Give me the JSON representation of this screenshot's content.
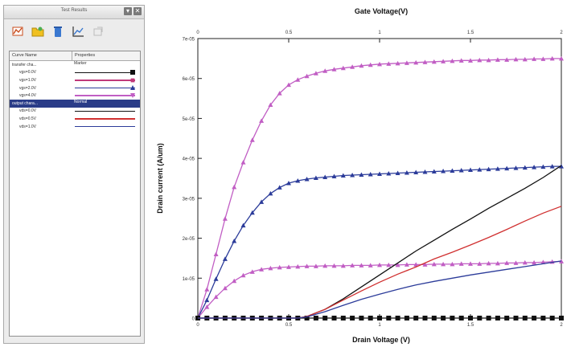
{
  "panel": {
    "title": "Test Results",
    "close_label": "✕",
    "toolbar": [
      {
        "name": "new-plot-icon"
      },
      {
        "name": "open-folder-icon"
      },
      {
        "name": "delete-icon"
      },
      {
        "name": "chart-icon"
      },
      {
        "name": "export-icon"
      }
    ],
    "columns": [
      "Curve Name",
      "Properties"
    ],
    "groups": [
      {
        "name": "transfer cha...",
        "property": "Marker",
        "selected": false,
        "children": [
          {
            "name": "vgs=0.0V",
            "color": "#111111",
            "marker": "square"
          },
          {
            "name": "vgs=1.0V",
            "color": "#c0397a",
            "marker": "square"
          },
          {
            "name": "vgs=2.0V",
            "color": "#2c3c9a",
            "marker": "triangle"
          },
          {
            "name": "vgs=4.0V",
            "color": "#c15ec4",
            "marker": "triangle"
          }
        ]
      },
      {
        "name": "output chara...",
        "property": "Normal",
        "selected": true,
        "children": [
          {
            "name": "vds=0.0V",
            "color": "#111111",
            "marker": "none"
          },
          {
            "name": "vds=0.5V",
            "color": "#d03030",
            "marker": "none"
          },
          {
            "name": "vds=1.0V",
            "color": "#2c3c9a",
            "marker": "none"
          }
        ]
      }
    ]
  },
  "chart_data": {
    "type": "line",
    "top_axis_label": "Gate Voltage(V)",
    "xlabel": "Drain Voltage (V)",
    "ylabel": "Drain current (A/um)",
    "xlim": [
      0,
      2
    ],
    "ylim": [
      0,
      7e-05
    ],
    "x_ticks": [
      "0",
      "0.5",
      "1",
      "1.5",
      "2"
    ],
    "top_ticks": [
      "0",
      "0.5",
      "1",
      "1.5",
      "2"
    ],
    "y_ticks": [
      "0",
      "1e-05",
      "2e-05",
      "3e-05",
      "4e-05",
      "5e-05",
      "6e-05",
      "7e-05"
    ],
    "grid": false,
    "series": [
      {
        "id": "s1",
        "color": "#c15ec4",
        "marker": "triangle",
        "x": [
          0,
          0.05,
          0.1,
          0.15,
          0.2,
          0.25,
          0.3,
          0.35,
          0.4,
          0.45,
          0.5,
          0.55,
          0.6,
          0.65,
          0.7,
          0.75,
          0.8,
          0.85,
          0.9,
          0.95,
          1.0,
          1.05,
          1.1,
          1.15,
          1.2,
          1.25,
          1.3,
          1.35,
          1.4,
          1.45,
          1.5,
          1.55,
          1.6,
          1.65,
          1.7,
          1.75,
          1.8,
          1.85,
          1.9,
          1.95,
          2.0
        ],
        "y": [
          0,
          7.2e-06,
          1.6e-05,
          2.49e-05,
          3.28e-05,
          3.9e-05,
          4.46e-05,
          4.94e-05,
          5.34e-05,
          5.63e-05,
          5.84e-05,
          5.97e-05,
          6.06e-05,
          6.13e-05,
          6.19e-05,
          6.23e-05,
          6.26e-05,
          6.29e-05,
          6.32e-05,
          6.34e-05,
          6.36e-05,
          6.37e-05,
          6.38e-05,
          6.39e-05,
          6.4e-05,
          6.41e-05,
          6.42e-05,
          6.43e-05,
          6.44e-05,
          6.45e-05,
          6.45e-05,
          6.46e-05,
          6.46e-05,
          6.47e-05,
          6.47e-05,
          6.48e-05,
          6.48e-05,
          6.49e-05,
          6.49e-05,
          6.5e-05,
          6.5e-05
        ]
      },
      {
        "id": "s2",
        "color": "#2c3c9a",
        "marker": "triangle",
        "x": [
          0,
          0.05,
          0.1,
          0.15,
          0.2,
          0.25,
          0.3,
          0.35,
          0.4,
          0.45,
          0.5,
          0.55,
          0.6,
          0.65,
          0.7,
          0.75,
          0.8,
          0.85,
          0.9,
          0.95,
          1.0,
          1.05,
          1.1,
          1.15,
          1.2,
          1.25,
          1.3,
          1.35,
          1.4,
          1.45,
          1.5,
          1.55,
          1.6,
          1.65,
          1.7,
          1.75,
          1.8,
          1.85,
          1.9,
          1.95,
          2.0
        ],
        "y": [
          0,
          4.5e-06,
          9.8e-06,
          1.48e-05,
          1.93e-05,
          2.32e-05,
          2.64e-05,
          2.91e-05,
          3.12e-05,
          3.27e-05,
          3.38e-05,
          3.44e-05,
          3.48e-05,
          3.51e-05,
          3.53e-05,
          3.55e-05,
          3.57e-05,
          3.58e-05,
          3.59e-05,
          3.6e-05,
          3.61e-05,
          3.62e-05,
          3.63e-05,
          3.64e-05,
          3.65e-05,
          3.66e-05,
          3.67e-05,
          3.68e-05,
          3.69e-05,
          3.7e-05,
          3.71e-05,
          3.72e-05,
          3.73e-05,
          3.74e-05,
          3.75e-05,
          3.76e-05,
          3.77e-05,
          3.78e-05,
          3.79e-05,
          3.8e-05,
          3.8e-05
        ]
      },
      {
        "id": "s3",
        "color": "#c15ec4",
        "marker": "triangle",
        "x": [
          0,
          0.05,
          0.1,
          0.15,
          0.2,
          0.25,
          0.3,
          0.35,
          0.4,
          0.45,
          0.5,
          0.55,
          0.6,
          0.65,
          0.7,
          0.75,
          0.8,
          0.85,
          0.9,
          0.95,
          1.0,
          1.05,
          1.1,
          1.15,
          1.2,
          1.25,
          1.3,
          1.35,
          1.4,
          1.45,
          1.5,
          1.55,
          1.6,
          1.65,
          1.7,
          1.75,
          1.8,
          1.85,
          1.9,
          1.95,
          2.0
        ],
        "y": [
          0,
          2.8e-06,
          5.3e-06,
          7.5e-06,
          9.3e-06,
          1.07e-05,
          1.16e-05,
          1.22e-05,
          1.25e-05,
          1.27e-05,
          1.28e-05,
          1.29e-05,
          1.3e-05,
          1.3e-05,
          1.31e-05,
          1.31e-05,
          1.31e-05,
          1.32e-05,
          1.32e-05,
          1.32e-05,
          1.33e-05,
          1.33e-05,
          1.33e-05,
          1.34e-05,
          1.34e-05,
          1.34e-05,
          1.35e-05,
          1.35e-05,
          1.35e-05,
          1.36e-05,
          1.36e-05,
          1.36e-05,
          1.37e-05,
          1.37e-05,
          1.38e-05,
          1.38e-05,
          1.39e-05,
          1.39e-05,
          1.4e-05,
          1.41e-05,
          1.42e-05
        ]
      },
      {
        "id": "s4",
        "color": "#111111",
        "marker": "square",
        "x": [
          0,
          0.05,
          0.1,
          0.15,
          0.2,
          0.25,
          0.3,
          0.35,
          0.4,
          0.45,
          0.5,
          0.55,
          0.6,
          0.65,
          0.7,
          0.75,
          0.8,
          0.85,
          0.9,
          0.95,
          1.0,
          1.05,
          1.1,
          1.15,
          1.2,
          1.25,
          1.3,
          1.35,
          1.4,
          1.45,
          1.5,
          1.55,
          1.6,
          1.65,
          1.7,
          1.75,
          1.8,
          1.85,
          1.9,
          1.95,
          2.0
        ],
        "y": [
          0,
          0,
          0,
          0,
          0,
          0,
          0,
          0,
          0,
          0,
          0,
          0,
          0,
          0,
          0,
          0,
          0,
          0,
          0,
          0,
          0,
          0,
          0,
          0,
          0,
          0,
          0,
          0,
          0,
          0,
          0,
          0,
          0,
          0,
          0,
          0,
          0,
          0,
          0,
          0,
          0
        ]
      },
      {
        "id": "o1",
        "color": "#111111",
        "marker": "none",
        "x": [
          0,
          0.2,
          0.4,
          0.55,
          0.6,
          0.7,
          0.8,
          0.9,
          1.0,
          1.1,
          1.2,
          1.3,
          1.4,
          1.5,
          1.6,
          1.7,
          1.8,
          1.9,
          2.0
        ],
        "y": [
          0,
          0,
          0,
          0,
          4e-07,
          2.2e-06,
          4.8e-06,
          7.8e-06,
          1.08e-05,
          1.38e-05,
          1.68e-05,
          1.95e-05,
          2.22e-05,
          2.48e-05,
          2.75e-05,
          3e-05,
          3.25e-05,
          3.52e-05,
          3.82e-05
        ]
      },
      {
        "id": "o2",
        "color": "#d03030",
        "marker": "none",
        "x": [
          0,
          0.2,
          0.4,
          0.55,
          0.6,
          0.7,
          0.8,
          0.9,
          1.0,
          1.1,
          1.2,
          1.3,
          1.4,
          1.5,
          1.6,
          1.7,
          1.8,
          1.9,
          2.0
        ],
        "y": [
          0,
          0,
          0,
          0,
          4e-07,
          2.2e-06,
          4.5e-06,
          6.8e-06,
          9e-06,
          1.1e-05,
          1.28e-05,
          1.48e-05,
          1.65e-05,
          1.83e-05,
          2.02e-05,
          2.22e-05,
          2.43e-05,
          2.63e-05,
          2.8e-05
        ]
      },
      {
        "id": "o3",
        "color": "#2c3c9a",
        "marker": "none",
        "x": [
          0,
          0.2,
          0.4,
          0.55,
          0.6,
          0.7,
          0.8,
          0.9,
          1.0,
          1.1,
          1.2,
          1.3,
          1.4,
          1.5,
          1.6,
          1.7,
          1.8,
          1.9,
          2.0
        ],
        "y": [
          0,
          0,
          0,
          0,
          3e-07,
          1.6e-06,
          3.2e-06,
          4.7e-06,
          6e-06,
          7.2e-06,
          8.3e-06,
          9.2e-06,
          1e-05,
          1.08e-05,
          1.15e-05,
          1.22e-05,
          1.29e-05,
          1.36e-05,
          1.43e-05
        ]
      }
    ]
  }
}
